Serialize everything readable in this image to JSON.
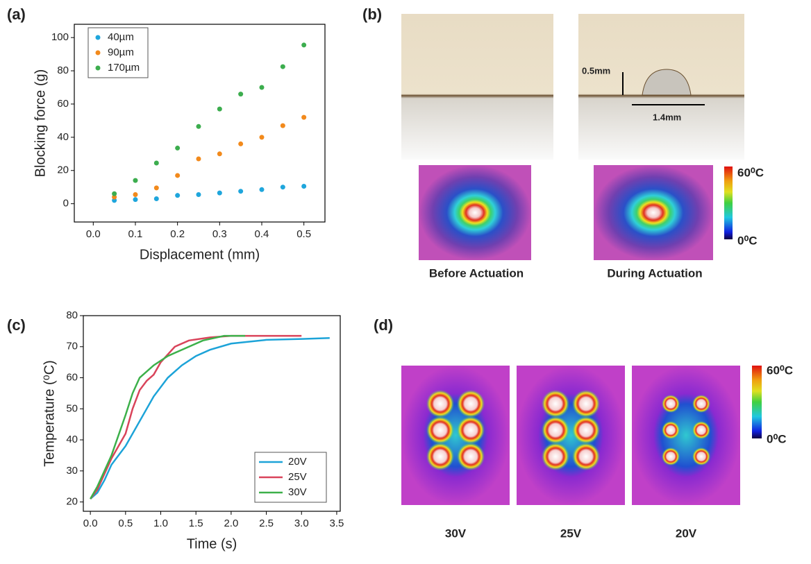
{
  "chart_data": [
    {
      "type": "scatter",
      "x_label": "Displacement (mm)",
      "y_label": "Blocking force (g)",
      "legend": "upper left",
      "x": [
        0.05,
        0.1,
        0.15,
        0.2,
        0.25,
        0.3,
        0.35,
        0.4,
        0.45,
        0.5
      ],
      "series": [
        {
          "name": "40µm",
          "color": "#1fa6dc",
          "values": [
            2,
            2.5,
            3,
            5,
            5.5,
            6.5,
            7.5,
            8.5,
            10,
            10.5
          ]
        },
        {
          "name": "90µm",
          "color": "#f28a1c",
          "values": [
            4,
            5.5,
            9.5,
            17,
            27,
            30,
            36,
            40,
            47,
            52
          ]
        },
        {
          "name": "170µm",
          "color": "#3cad4e",
          "values": [
            6,
            14,
            24.5,
            33.5,
            46.5,
            57,
            66,
            70,
            82.5,
            95.5
          ]
        }
      ],
      "xlim": [
        -0.045,
        0.55
      ],
      "xticks": [
        {
          "value": 0,
          "label": "0.0"
        },
        0.1,
        0.2,
        0.3,
        0.4,
        0.5
      ],
      "ylim": [
        -11,
        108
      ],
      "yticks": [
        0,
        20,
        40,
        60,
        80,
        100
      ]
    },
    {
      "type": "line",
      "x_label": "Time (s)",
      "y_label": "Temperature (⁰C)",
      "legend": "lower right",
      "series": [
        {
          "name": "20V",
          "color": "#1ca3d8",
          "x": [
            0,
            0.1,
            0.2,
            0.3,
            0.5,
            0.7,
            0.9,
            1.1,
            1.3,
            1.5,
            1.7,
            2.0,
            2.5,
            3.0,
            3.4
          ],
          "values": [
            21,
            23,
            27,
            32,
            38,
            46,
            54,
            60,
            64,
            67,
            69,
            71,
            72.2,
            72.5,
            72.8
          ]
        },
        {
          "name": "25V",
          "color": "#d9435a",
          "x": [
            0,
            0.1,
            0.2,
            0.3,
            0.5,
            0.6,
            0.7,
            0.8,
            0.9,
            1.0,
            1.2,
            1.4,
            1.7,
            2.0,
            2.5,
            3.0
          ],
          "values": [
            21,
            24,
            29,
            34,
            42,
            50,
            56,
            59,
            61,
            65,
            70,
            72,
            73,
            73.5,
            73.5,
            73.5
          ]
        },
        {
          "name": "30V",
          "color": "#3cb04a",
          "x": [
            0,
            0.1,
            0.2,
            0.3,
            0.5,
            0.6,
            0.7,
            0.9,
            1.1,
            1.3,
            1.6,
            1.9,
            2.2
          ],
          "values": [
            21,
            25,
            30,
            35,
            48,
            55,
            60,
            64,
            67,
            69,
            72,
            73.5,
            73.5
          ]
        }
      ],
      "xlim": [
        -0.1,
        3.55
      ],
      "xticks": [
        {
          "value": 0,
          "label": "0.0"
        },
        0.5,
        {
          "value": 1,
          "label": "1.0"
        },
        1.5,
        {
          "value": 2,
          "label": "2.0"
        },
        2.5,
        {
          "value": 3,
          "label": "3.0"
        },
        3.5
      ],
      "ylim": [
        17,
        80
      ],
      "yticks": [
        20,
        30,
        40,
        50,
        60,
        70,
        80
      ]
    }
  ],
  "panel_labels": [
    "(a)",
    "(b)",
    "(c)",
    "(d)"
  ],
  "panel_b": {
    "height": "0.5mm",
    "width": "1.4mm",
    "before": "Before Actuation",
    "during": "During Actuation",
    "scale_max": "60⁰C",
    "scale_min": "0⁰C"
  },
  "panel_d": {
    "voltages": [
      "30V",
      "25V",
      "20V"
    ],
    "scale_max": "60⁰C",
    "scale_min": "0⁰C"
  }
}
